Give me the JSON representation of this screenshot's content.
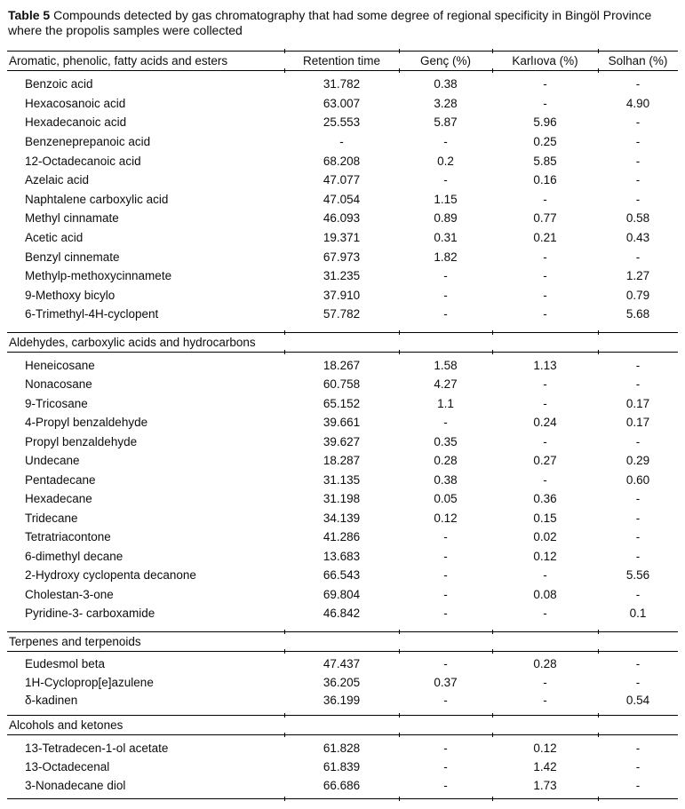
{
  "caption": {
    "label": "Table 5",
    "text": "Compounds detected by gas chromatography that had some degree of regional specificity in Bingöl Province where the propolis samples were collected"
  },
  "table": {
    "columns": [
      "Aromatic, phenolic, fatty acids and esters",
      "Retention time",
      "Genç (%)",
      "Karlıova (%)",
      "Solhan (%)"
    ],
    "sections": [
      {
        "title": null,
        "rows": [
          {
            "name": "Benzoic acid",
            "retention_time": "31.782",
            "genc": "0.38",
            "karliova": "-",
            "solhan": "-"
          },
          {
            "name": "Hexacosanoic acid",
            "retention_time": "63.007",
            "genc": "3.28",
            "karliova": "-",
            "solhan": "4.90"
          },
          {
            "name": "Hexadecanoic acid",
            "retention_time": "25.553",
            "genc": "5.87",
            "karliova": "5.96",
            "solhan": "-"
          },
          {
            "name": "Benzeneprepanoic acid",
            "retention_time": "-",
            "genc": "-",
            "karliova": "0.25",
            "solhan": "-"
          },
          {
            "name": "12-Octadecanoic acid",
            "retention_time": "68.208",
            "genc": "0.2",
            "karliova": "5.85",
            "solhan": "-"
          },
          {
            "name": "Azelaic acid",
            "retention_time": "47.077",
            "genc": "-",
            "karliova": "0.16",
            "solhan": "-"
          },
          {
            "name": "Naphtalene carboxylic acid",
            "retention_time": "47.054",
            "genc": "1.15",
            "karliova": "-",
            "solhan": "-"
          },
          {
            "name": "Methyl cinnamate",
            "retention_time": "46.093",
            "genc": "0.89",
            "karliova": "0.77",
            "solhan": "0.58"
          },
          {
            "name": "Acetic acid",
            "retention_time": "19.371",
            "genc": "0.31",
            "karliova": "0.21",
            "solhan": "0.43"
          },
          {
            "name": "Benzyl cinnemate",
            "retention_time": "67.973",
            "genc": "1.82",
            "karliova": "-",
            "solhan": "-"
          },
          {
            "name": "Methylp-methoxycinnamete",
            "retention_time": "31.235",
            "genc": "-",
            "karliova": "-",
            "solhan": "1.27"
          },
          {
            "name": "9-Methoxy bicylo",
            "retention_time": "37.910",
            "genc": "-",
            "karliova": "-",
            "solhan": "0.79"
          },
          {
            "name": "6-Trimethyl-4H-cyclopent",
            "retention_time": "57.782",
            "genc": "-",
            "karliova": "-",
            "solhan": "5.68"
          }
        ]
      },
      {
        "title": "Aldehydes, carboxylic acids and hydrocarbons",
        "rows": [
          {
            "name": "Heneicosane",
            "retention_time": "18.267",
            "genc": "1.58",
            "karliova": "1.13",
            "solhan": "-"
          },
          {
            "name": "Nonacosane",
            "retention_time": "60.758",
            "genc": "4.27",
            "karliova": "-",
            "solhan": "-"
          },
          {
            "name": "9-Tricosane",
            "retention_time": "65.152",
            "genc": "1.1",
            "karliova": "-",
            "solhan": "0.17"
          },
          {
            "name": "4-Propyl benzaldehyde",
            "retention_time": "39.661",
            "genc": "-",
            "karliova": "0.24",
            "solhan": "0.17"
          },
          {
            "name": "Propyl benzaldehyde",
            "retention_time": "39.627",
            "genc": "0.35",
            "karliova": "-",
            "solhan": "-"
          },
          {
            "name": "Undecane",
            "retention_time": "18.287",
            "genc": "0.28",
            "karliova": "0.27",
            "solhan": "0.29"
          },
          {
            "name": "Pentadecane",
            "retention_time": "31.135",
            "genc": "0.38",
            "karliova": "-",
            "solhan": "0.60"
          },
          {
            "name": "Hexadecane",
            "retention_time": "31.198",
            "genc": "0.05",
            "karliova": "0.36",
            "solhan": "-"
          },
          {
            "name": "Tridecane",
            "retention_time": "34.139",
            "genc": "0.12",
            "karliova": "0.15",
            "solhan": "-"
          },
          {
            "name": "Tetratriacontone",
            "retention_time": "41.286",
            "genc": "-",
            "karliova": "0.02",
            "solhan": "-"
          },
          {
            "name": "6-dimethyl decane",
            "retention_time": "13.683",
            "genc": "-",
            "karliova": "0.12",
            "solhan": "-"
          },
          {
            "name": "2-Hydroxy cyclopenta decanone",
            "retention_time": "66.543",
            "genc": "-",
            "karliova": "-",
            "solhan": "5.56"
          },
          {
            "name": "Cholestan-3-one",
            "retention_time": "69.804",
            "genc": "-",
            "karliova": "0.08",
            "solhan": "-"
          },
          {
            "name": "Pyridine-3- carboxamide",
            "retention_time": "46.842",
            "genc": "-",
            "karliova": "-",
            "solhan": "0.1"
          }
        ]
      },
      {
        "title": "Terpenes and terpenoids",
        "rows": [
          {
            "name": "Eudesmol beta",
            "retention_time": "47.437",
            "genc": "-",
            "karliova": "0.28",
            "solhan": "-"
          },
          {
            "name": "1H-Cycloprop[e]azulene",
            "retention_time": "36.205",
            "genc": "0.37",
            "karliova": "-",
            "solhan": "-"
          },
          {
            "name": "δ-kadinen",
            "retention_time": "36.199",
            "genc": "-",
            "karliova": "-",
            "solhan": "0.54"
          }
        ]
      },
      {
        "title": "Alcohols and ketones",
        "rows": [
          {
            "name": "13-Tetradecen-1-ol acetate",
            "retention_time": "61.828",
            "genc": "-",
            "karliova": "0.12",
            "solhan": "-"
          },
          {
            "name": "13-Octadecenal",
            "retention_time": "61.839",
            "genc": "-",
            "karliova": "1.42",
            "solhan": "-"
          },
          {
            "name": "3-Nonadecane diol",
            "retention_time": "66.686",
            "genc": "-",
            "karliova": "1.73",
            "solhan": "-"
          }
        ]
      }
    ]
  }
}
